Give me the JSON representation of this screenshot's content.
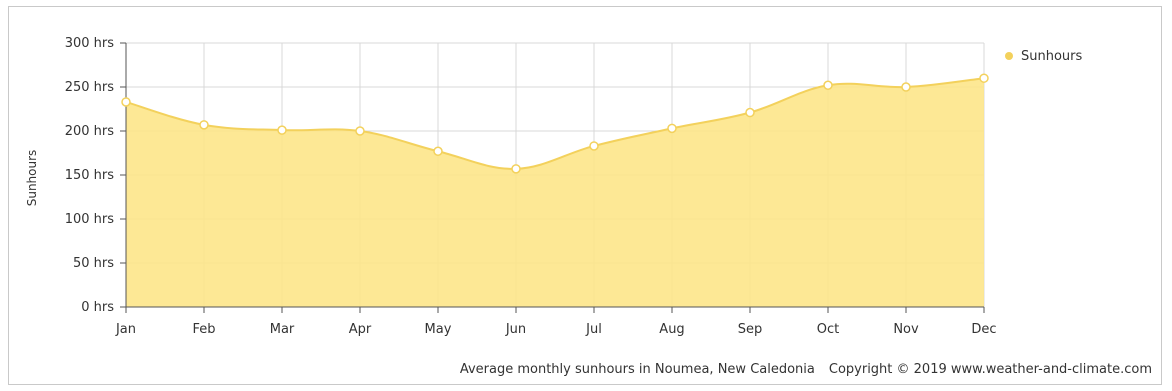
{
  "chart_data": {
    "type": "area",
    "categories": [
      "Jan",
      "Feb",
      "Mar",
      "Apr",
      "May",
      "Jun",
      "Jul",
      "Aug",
      "Sep",
      "Oct",
      "Nov",
      "Dec"
    ],
    "series": [
      {
        "name": "Sunhours",
        "values": [
          233,
          207,
          201,
          200,
          177,
          157,
          183,
          203,
          221,
          252,
          250,
          260
        ]
      }
    ],
    "ylabel": "Sunhours",
    "ylim": [
      0,
      300
    ],
    "yticks": [
      0,
      50,
      100,
      150,
      200,
      250,
      300
    ],
    "ytick_labels": [
      "0 hrs",
      "50 hrs",
      "100 hrs",
      "150 hrs",
      "200 hrs",
      "250 hrs",
      "300 hrs"
    ],
    "grid": true,
    "legend": "top-right",
    "colors": {
      "fill": "#fde58a",
      "line": "#f3d15c",
      "marker_fill": "#ffffff",
      "grid": "#d8d8d8"
    }
  },
  "caption": {
    "description": "Average monthly sunhours in Noumea, New Caledonia",
    "copyright": "Copyright © 2019 www.weather-and-climate.com"
  }
}
